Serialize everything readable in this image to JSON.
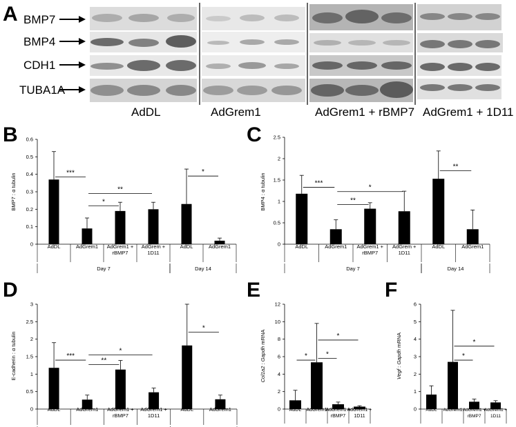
{
  "panel_letters": [
    "A",
    "B",
    "C",
    "D",
    "E",
    "F"
  ],
  "western_blot": {
    "protein_labels": [
      "BMP7",
      "BMP4",
      "CDH1",
      "TUBA1A"
    ],
    "group_labels": [
      "AdDL",
      "AdGrem1",
      "AdGrem1 + rBMP7",
      "AdGrem1 + 1D11"
    ]
  },
  "chart_data": [
    {
      "panel": "B",
      "type": "bar",
      "ylabel": "BMP7 : α tubulin",
      "ylim": [
        0,
        0.6
      ],
      "yticks": [
        "0",
        "0.1",
        "0.2",
        "0.3",
        "0.4",
        "0.5",
        "0.6"
      ],
      "categories": [
        "AdDL",
        "AdGrem1",
        "AdGrem1 + rBMP7",
        "AdGrem + 1D11",
        "AdDL",
        "AdGrem1"
      ],
      "groups": [
        {
          "label": "Day 7",
          "count": 4
        },
        {
          "label": "Day 14",
          "count": 2
        }
      ],
      "values": [
        0.37,
        0.09,
        0.19,
        0.2,
        0.23,
        0.02
      ],
      "errors": [
        0.16,
        0.06,
        0.05,
        0.04,
        0.2,
        0.015
      ],
      "significance": [
        {
          "from": 0,
          "to": 1,
          "label": "***",
          "y": 0.385
        },
        {
          "from": 1,
          "to": 2,
          "label": "*",
          "y": 0.22
        },
        {
          "from": 1,
          "to": 3,
          "label": "**",
          "y": 0.29
        },
        {
          "from": 4,
          "to": 5,
          "label": "*",
          "y": 0.39
        }
      ]
    },
    {
      "panel": "C",
      "type": "bar",
      "ylabel": "BMP4 : α tubulin",
      "ylim": [
        0,
        2.5
      ],
      "yticks": [
        "0",
        "0.5",
        "1",
        "1.5",
        "2",
        "2.5"
      ],
      "categories": [
        "AdDL",
        "AdGrem1",
        "AdGrem1 + rBMP7",
        "AdGrem + 1D11",
        "AdDL",
        "AdGrem1"
      ],
      "groups": [
        {
          "label": "Day 7",
          "count": 4
        },
        {
          "label": "Day 14",
          "count": 2
        }
      ],
      "values": [
        1.18,
        0.35,
        0.83,
        0.77,
        1.53,
        0.35
      ],
      "errors": [
        0.43,
        0.22,
        0.14,
        0.47,
        0.65,
        0.45
      ],
      "significance": [
        {
          "from": 0,
          "to": 1,
          "label": "***",
          "y": 1.33
        },
        {
          "from": 1,
          "to": 2,
          "label": "**",
          "y": 0.93
        },
        {
          "from": 1,
          "to": 3,
          "label": "*",
          "y": 1.23
        },
        {
          "from": 4,
          "to": 5,
          "label": "**",
          "y": 1.72
        }
      ]
    },
    {
      "panel": "D",
      "type": "bar",
      "ylabel": "E-cadherin : α tubulin",
      "ylim": [
        0,
        3
      ],
      "yticks": [
        "0",
        "0.5",
        "1",
        "1.5",
        "2",
        "2.5",
        "3"
      ],
      "categories": [
        "AdDL",
        "AdGrem1",
        "AdGrem1 + rBMP7",
        "AdGrem1 + 1D11",
        "AdDL",
        "AdGrem1"
      ],
      "groups": [
        {
          "label": "Day 7",
          "count": 4
        },
        {
          "label": "Day 14",
          "count": 2
        }
      ],
      "values": [
        1.18,
        0.27,
        1.13,
        0.48,
        1.82,
        0.28
      ],
      "errors": [
        0.72,
        0.13,
        0.26,
        0.12,
        1.2,
        0.12
      ],
      "significance": [
        {
          "from": 0,
          "to": 1,
          "label": "***",
          "y": 1.4
        },
        {
          "from": 1,
          "to": 2,
          "label": "**",
          "y": 1.27
        },
        {
          "from": 1,
          "to": 3,
          "label": "*",
          "y": 1.55
        },
        {
          "from": 4,
          "to": 5,
          "label": "*",
          "y": 2.2
        }
      ]
    },
    {
      "panel": "E",
      "type": "bar",
      "ylabel_italic": "Col1a2",
      "ylabel_sep": " : ",
      "ylabel_italic2": "Gapdh",
      "ylabel_rest": " mRNA",
      "ylim": [
        0,
        12
      ],
      "yticks": [
        "0",
        "2",
        "4",
        "6",
        "8",
        "10",
        "12"
      ],
      "categories": [
        "AdDL",
        "AdGrem1",
        "AdGrem1 + rBMP7",
        "AdGrem1 + 1D11"
      ],
      "groups": [],
      "values": [
        1.0,
        5.35,
        0.55,
        0.28
      ],
      "errors": [
        1.15,
        4.45,
        0.25,
        0.1
      ],
      "significance": [
        {
          "from": 0,
          "to": 1,
          "label": "*",
          "y": 5.6
        },
        {
          "from": 1,
          "to": 2,
          "label": "*",
          "y": 5.8
        },
        {
          "from": 1,
          "to": 3,
          "label": "*",
          "y": 7.9
        }
      ]
    },
    {
      "panel": "F",
      "type": "bar",
      "ylabel_italic": "Vegf",
      "ylabel_sep": " : ",
      "ylabel_italic2": "Gapdh",
      "ylabel_rest": " mRNA",
      "ylim": [
        0,
        6
      ],
      "yticks": [
        "0",
        "1",
        "2",
        "3",
        "4",
        "5",
        "6"
      ],
      "categories": [
        "AdDL",
        "AdGrem1",
        "AdGrem1 + rBMP7",
        "AdGrem1 + 1D11"
      ],
      "groups": [],
      "values": [
        0.83,
        2.7,
        0.42,
        0.38
      ],
      "errors": [
        0.5,
        2.95,
        0.15,
        0.1
      ],
      "significance": [
        {
          "from": 1,
          "to": 2,
          "label": "*",
          "y": 2.8
        },
        {
          "from": 1,
          "to": 3,
          "label": "*",
          "y": 3.6
        }
      ]
    }
  ]
}
